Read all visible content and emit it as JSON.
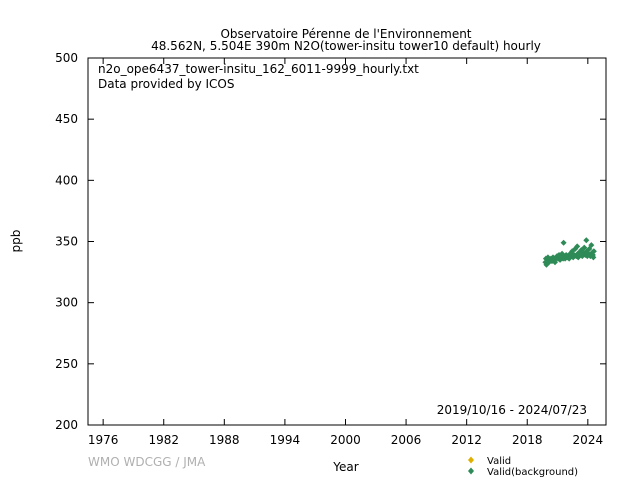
{
  "header": {
    "line1": "Observatoire Pérenne de l'Environnement",
    "line2": "48.562N, 5.504E 390m     N2O(tower-insitu tower10 default) hourly"
  },
  "annotations": {
    "filename": "n2o_ope6437_tower-insitu_162_6011-9999_hourly.txt",
    "provider": "Data provided by ICOS",
    "date_range": "2019/10/16 - 2024/07/23"
  },
  "footer": {
    "credit": "WMO WDCGG / JMA"
  },
  "colors": {
    "valid": "#e0b000",
    "background": "#2e8b57",
    "credit": "#b0b0b0"
  },
  "chart_data": {
    "type": "scatter",
    "xlabel": "Year",
    "ylabel": "ppb",
    "xlim": [
      1974.5,
      2025.8
    ],
    "ylim": [
      200,
      500
    ],
    "x_ticks": [
      1976,
      1982,
      1988,
      1994,
      2000,
      2006,
      2012,
      2018,
      2024
    ],
    "y_ticks": [
      200,
      250,
      300,
      350,
      400,
      450,
      500
    ],
    "grid": false,
    "legend_position": "bottom-right",
    "series": [
      {
        "name": "Valid",
        "marker": "diamond",
        "points": []
      },
      {
        "name": "Valid(background)",
        "marker": "diamond",
        "points": [
          [
            2019.8,
            333
          ],
          [
            2019.85,
            336
          ],
          [
            2019.9,
            331
          ],
          [
            2019.95,
            334
          ],
          [
            2020.0,
            332
          ],
          [
            2020.05,
            337
          ],
          [
            2020.1,
            335
          ],
          [
            2020.15,
            333
          ],
          [
            2020.25,
            334
          ],
          [
            2020.35,
            336
          ],
          [
            2020.45,
            334
          ],
          [
            2020.55,
            337
          ],
          [
            2020.65,
            335
          ],
          [
            2020.75,
            333
          ],
          [
            2020.85,
            336
          ],
          [
            2020.95,
            338
          ],
          [
            2021.05,
            336
          ],
          [
            2021.15,
            339
          ],
          [
            2021.25,
            335
          ],
          [
            2021.35,
            337
          ],
          [
            2021.45,
            340
          ],
          [
            2021.55,
            336
          ],
          [
            2021.6,
            349
          ],
          [
            2021.65,
            338
          ],
          [
            2021.75,
            336
          ],
          [
            2021.85,
            339
          ],
          [
            2021.95,
            337
          ],
          [
            2022.05,
            338
          ],
          [
            2022.15,
            336
          ],
          [
            2022.25,
            340
          ],
          [
            2022.35,
            338
          ],
          [
            2022.45,
            342
          ],
          [
            2022.55,
            337
          ],
          [
            2022.65,
            339
          ],
          [
            2022.75,
            344
          ],
          [
            2022.85,
            338
          ],
          [
            2022.95,
            346
          ],
          [
            2023.0,
            340
          ],
          [
            2023.05,
            337
          ],
          [
            2023.15,
            341
          ],
          [
            2023.25,
            339
          ],
          [
            2023.35,
            343
          ],
          [
            2023.45,
            338
          ],
          [
            2023.55,
            341
          ],
          [
            2023.65,
            345
          ],
          [
            2023.75,
            339
          ],
          [
            2023.85,
            351
          ],
          [
            2023.9,
            342
          ],
          [
            2023.95,
            338
          ],
          [
            2024.05,
            340
          ],
          [
            2024.15,
            344
          ],
          [
            2024.25,
            338
          ],
          [
            2024.35,
            347
          ],
          [
            2024.45,
            341
          ],
          [
            2024.5,
            339
          ],
          [
            2024.55,
            337
          ],
          [
            2024.6,
            342
          ]
        ]
      }
    ]
  }
}
